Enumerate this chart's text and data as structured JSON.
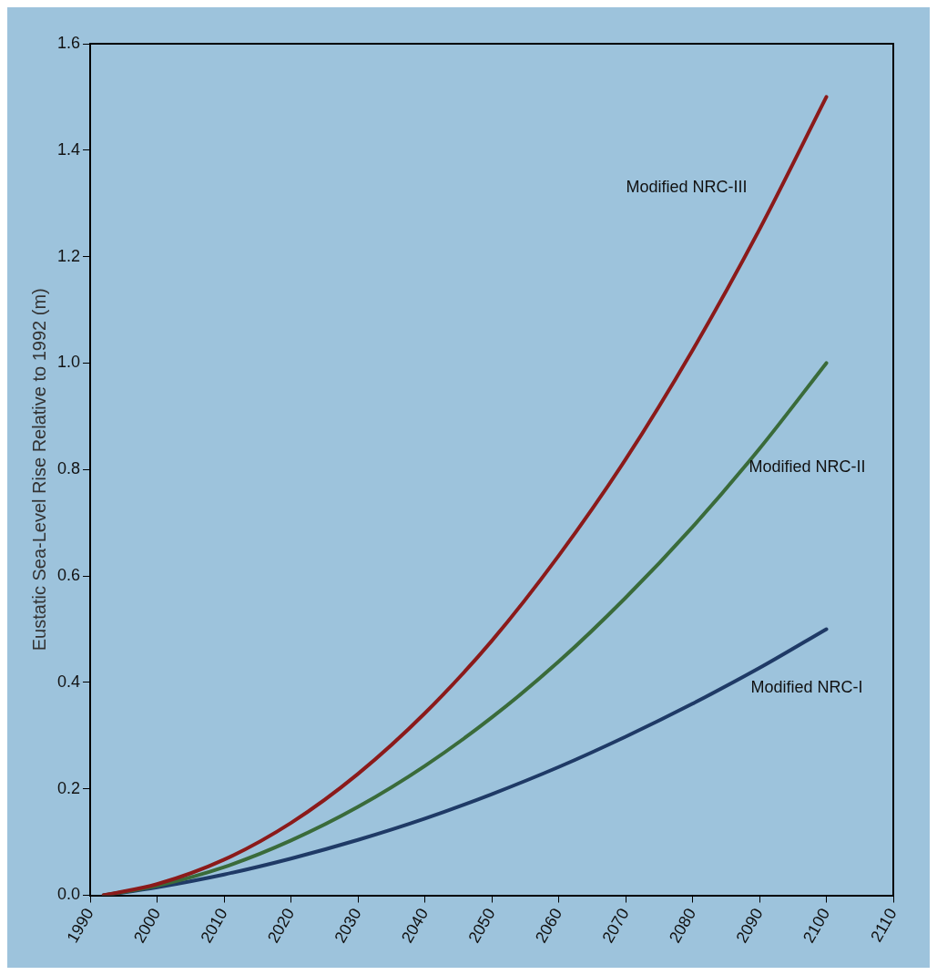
{
  "chart_data": {
    "type": "line",
    "ylabel": "Eustatic Sea-Level Rise Relative to 1992 (m)",
    "x": [
      1992,
      2000,
      2010,
      2020,
      2030,
      2040,
      2050,
      2060,
      2070,
      2080,
      2090,
      2100
    ],
    "series": [
      {
        "name": "Modified NRC-III",
        "color": "#8b1a1a",
        "values": [
          0,
          0.021,
          0.067,
          0.136,
          0.228,
          0.342,
          0.478,
          0.638,
          0.819,
          1.024,
          1.251,
          1.5
        ]
      },
      {
        "name": "Modified NRC-II",
        "color": "#3a6b3a",
        "values": [
          0,
          0.018,
          0.053,
          0.103,
          0.166,
          0.243,
          0.334,
          0.439,
          0.559,
          0.692,
          0.839,
          1.0
        ]
      },
      {
        "name": "Modified NRC-I",
        "color": "#1f3a66",
        "values": [
          0,
          0.015,
          0.039,
          0.069,
          0.104,
          0.144,
          0.19,
          0.241,
          0.298,
          0.36,
          0.427,
          0.5
        ]
      }
    ],
    "xlim": [
      1990,
      2110
    ],
    "xticks": [
      1990,
      2000,
      2010,
      2020,
      2030,
      2040,
      2050,
      2060,
      2070,
      2080,
      2090,
      2100,
      2110
    ],
    "ylim": [
      0,
      1.6
    ],
    "yticks": [
      {
        "value": 0,
        "label": "0.0"
      },
      0.2,
      0.4,
      0.6,
      0.8,
      {
        "value": 1,
        "label": "1.0"
      },
      1.2,
      1.4,
      1.6
    ],
    "grid": false,
    "legend": false,
    "marker": "none",
    "line_style": "solid"
  }
}
